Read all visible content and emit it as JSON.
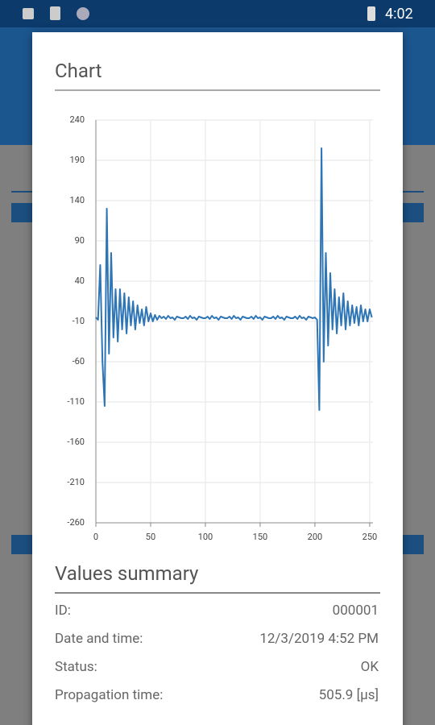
{
  "status_bar": {
    "time": "4:02"
  },
  "dialog": {
    "title": "Chart"
  },
  "chart_data": {
    "type": "line",
    "x": [
      0,
      2,
      4,
      6,
      8,
      10,
      12,
      14,
      16,
      18,
      20,
      22,
      24,
      26,
      28,
      30,
      32,
      34,
      36,
      38,
      40,
      42,
      44,
      46,
      48,
      50,
      52,
      54,
      56,
      58,
      60,
      62,
      64,
      66,
      68,
      70,
      72,
      74,
      76,
      78,
      80,
      82,
      84,
      86,
      88,
      90,
      92,
      94,
      96,
      98,
      100,
      102,
      104,
      106,
      108,
      110,
      112,
      114,
      116,
      118,
      120,
      122,
      124,
      126,
      128,
      130,
      132,
      134,
      136,
      138,
      140,
      142,
      144,
      146,
      148,
      150,
      152,
      154,
      156,
      158,
      160,
      162,
      164,
      166,
      168,
      170,
      172,
      174,
      176,
      178,
      180,
      182,
      184,
      186,
      188,
      190,
      192,
      194,
      196,
      198,
      200,
      202,
      204,
      206,
      208,
      210,
      212,
      214,
      216,
      218,
      220,
      222,
      224,
      226,
      228,
      230,
      232,
      234,
      236,
      238,
      240,
      242,
      244,
      246,
      248,
      250,
      252
    ],
    "series": [
      {
        "color": "#2e75b6",
        "values": [
          -5,
          -8,
          60,
          -60,
          -115,
          130,
          -50,
          75,
          -30,
          30,
          -35,
          30,
          -20,
          25,
          -25,
          20,
          -15,
          15,
          -20,
          10,
          -12,
          5,
          -15,
          8,
          -10,
          0,
          -10,
          -2,
          -8,
          -3,
          -6,
          -4,
          -7,
          -3,
          -6,
          -5,
          -8,
          -4,
          -5,
          -6,
          -6,
          -4,
          -7,
          -3,
          -6,
          -5,
          -8,
          -4,
          -5,
          -6,
          -6,
          -4,
          -7,
          -3,
          -6,
          -5,
          -8,
          -4,
          -5,
          -6,
          -6,
          -4,
          -7,
          -3,
          -6,
          -5,
          -8,
          -4,
          -5,
          -6,
          -6,
          -4,
          -7,
          -3,
          -6,
          -5,
          -8,
          -4,
          -5,
          -6,
          -6,
          -4,
          -7,
          -3,
          -6,
          -5,
          -8,
          -4,
          -5,
          -6,
          -6,
          -4,
          -7,
          -3,
          -6,
          -5,
          -8,
          -4,
          -5,
          -6,
          -5,
          -8,
          -120,
          205,
          -60,
          75,
          -40,
          50,
          -20,
          30,
          -25,
          20,
          -15,
          25,
          -20,
          15,
          -15,
          10,
          -12,
          8,
          -15,
          10,
          -10,
          5,
          -10,
          5,
          -5
        ]
      }
    ],
    "xlim": [
      0,
      253
    ],
    "ylim": [
      -260,
      240
    ],
    "xticks": [
      0,
      50,
      100,
      150,
      200,
      250
    ],
    "yticks": [
      -260,
      -210,
      -160,
      -110,
      -60,
      -10,
      40,
      90,
      140,
      190,
      240
    ],
    "grid": true
  },
  "summary": {
    "title": "Values summary",
    "rows": [
      [
        "ID:",
        "000001"
      ],
      [
        "Date and time:",
        "12/3/2019 4:52 PM"
      ],
      [
        "Status:",
        "OK"
      ],
      [
        "Propagation time:",
        "505.9 [µs]"
      ]
    ]
  }
}
